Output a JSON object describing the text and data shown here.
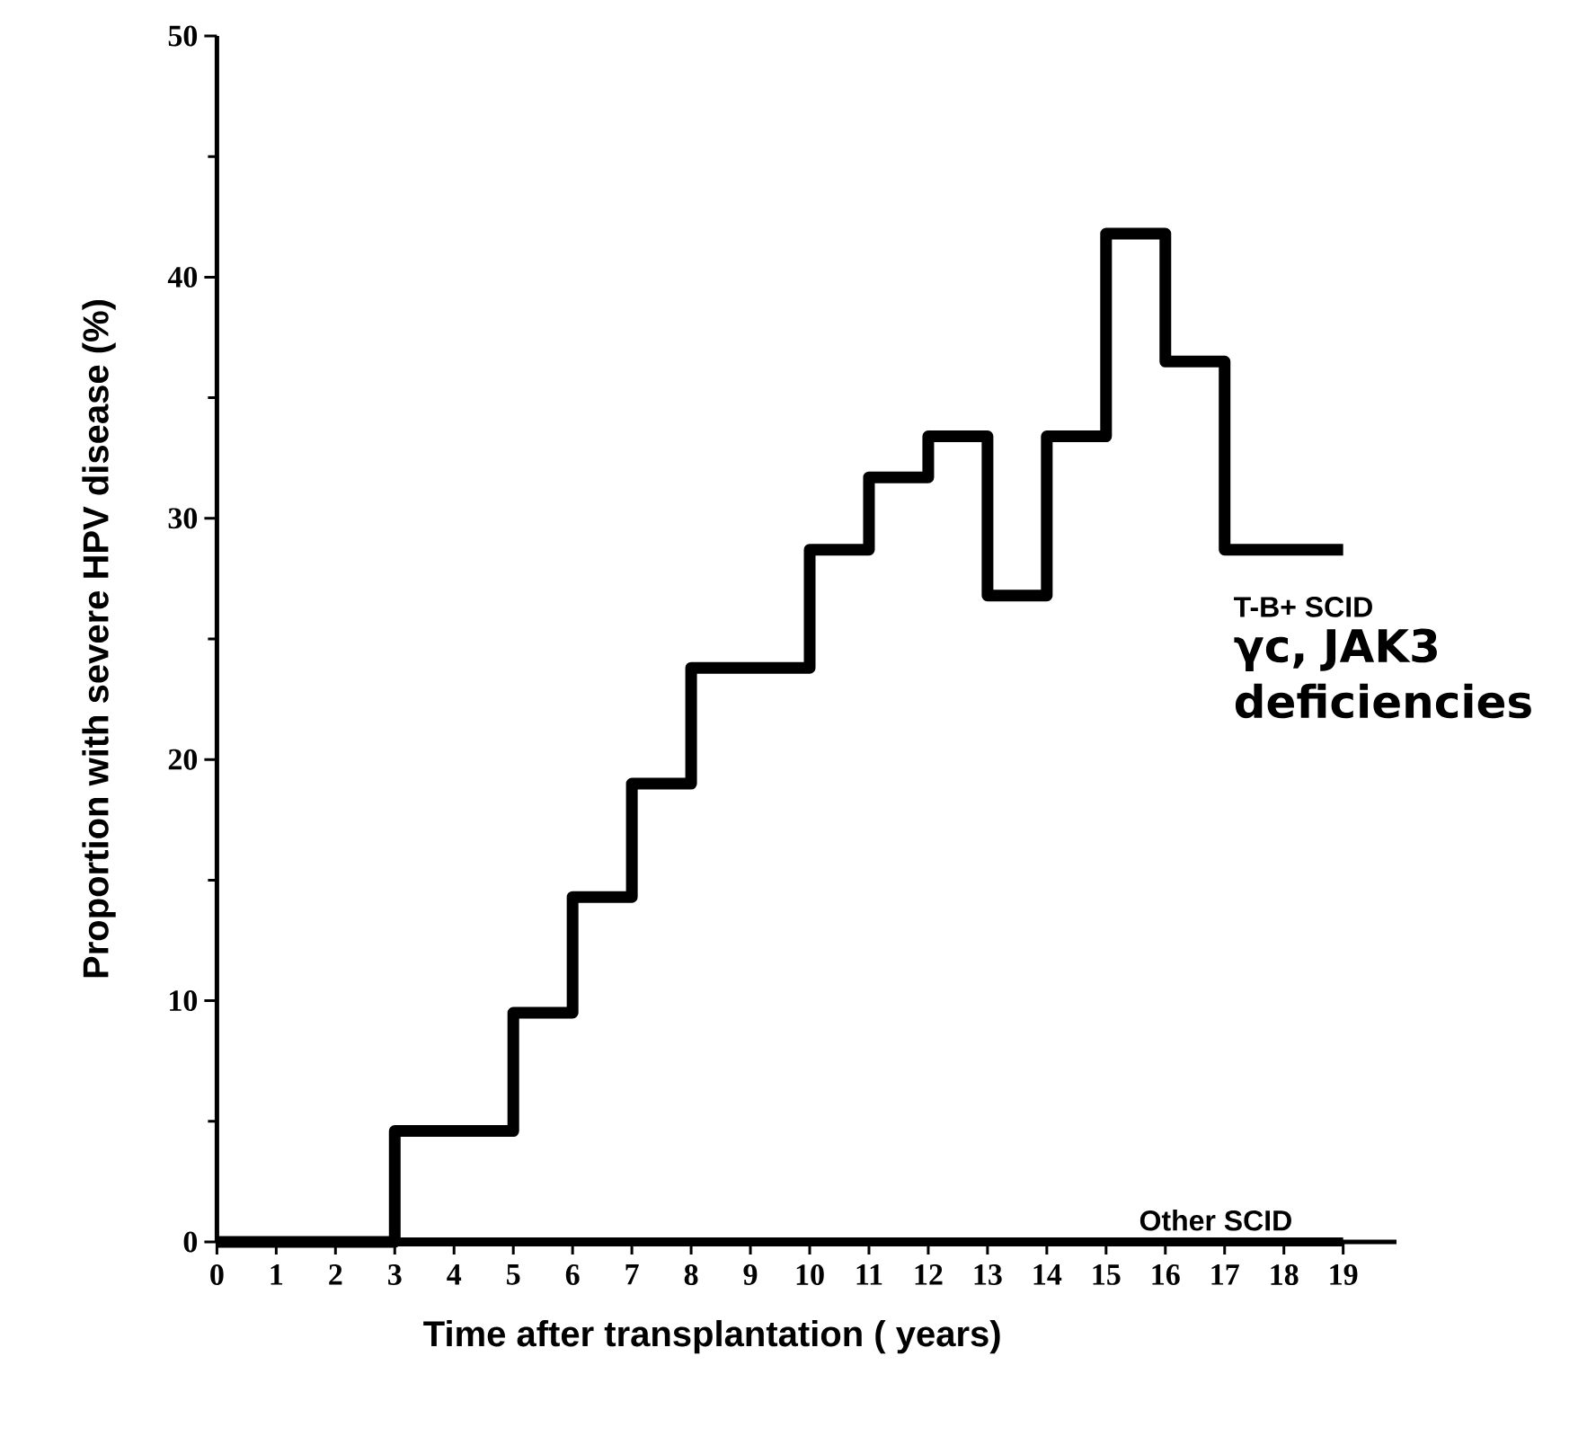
{
  "chart_data": {
    "type": "step",
    "xlabel": "Time after transplantation ( years)",
    "ylabel": "Proportion with severe  HPV disease  (%)",
    "xlim": [
      0,
      19.9
    ],
    "xticks": [
      0,
      1,
      2,
      3,
      4,
      5,
      6,
      7,
      8,
      9,
      10,
      11,
      12,
      13,
      14,
      15,
      16,
      17,
      18,
      19
    ],
    "ylim": [
      0,
      50
    ],
    "yticks": [
      0,
      10,
      20,
      30,
      40,
      50
    ],
    "series": [
      {
        "name": "T-B+ SCID",
        "color": "#000000",
        "x": [
          0,
          3,
          5,
          6,
          7,
          8,
          10,
          11,
          12,
          13,
          14,
          15,
          16,
          17,
          19
        ],
        "values": [
          0,
          4.6,
          9.5,
          14.3,
          19.0,
          23.8,
          28.7,
          31.7,
          33.4,
          26.8,
          33.4,
          41.8,
          36.5,
          28.7,
          28.7
        ]
      },
      {
        "name": "Other SCID",
        "color": "#000000",
        "x": [
          0,
          19
        ],
        "values": [
          0,
          0
        ]
      }
    ],
    "annotations": [
      "γc, JAK3 deficiencies"
    ]
  }
}
